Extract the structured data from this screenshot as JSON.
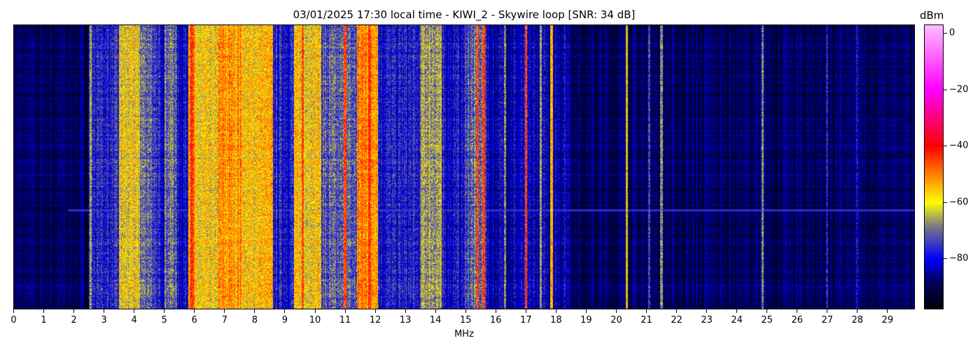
{
  "chart_data": {
    "type": "heatmap",
    "title": "03/01/2025 17:30 local time - KIWI_2 - Skywire loop [SNR: 34 dB]",
    "xlabel": "MHz",
    "ylabel": "",
    "xlim": [
      0,
      29.92
    ],
    "x_ticks": [
      "0",
      "1",
      "2",
      "3",
      "4",
      "5",
      "6",
      "7",
      "8",
      "9",
      "10",
      "11",
      "12",
      "13",
      "14",
      "15",
      "16",
      "17",
      "18",
      "19",
      "20",
      "21",
      "22",
      "23",
      "24",
      "25",
      "26",
      "27",
      "28",
      "29"
    ],
    "colorbar": {
      "label": "dBm",
      "range": [
        -98,
        3
      ],
      "ticks": [
        "0",
        "−20",
        "−40",
        "−60",
        "−80"
      ],
      "tick_values": [
        0,
        -20,
        -40,
        -60,
        -80
      ],
      "colormap": [
        "#000000",
        "#000060",
        "#0000ff",
        "#808080",
        "#ffff00",
        "#ff8000",
        "#ff0000",
        "#ff0080",
        "#ff00ff",
        "#ffc0ff"
      ]
    },
    "band_profile_dbm": [
      {
        "from": 0,
        "to": 2.5,
        "level": -89
      },
      {
        "from": 2.5,
        "to": 3.5,
        "level": -78
      },
      {
        "from": 3.5,
        "to": 4.2,
        "level": -61
      },
      {
        "from": 4.2,
        "to": 4.6,
        "level": -70
      },
      {
        "from": 4.6,
        "to": 5.0,
        "level": -78
      },
      {
        "from": 5.0,
        "to": 5.4,
        "level": -70
      },
      {
        "from": 5.4,
        "to": 5.8,
        "level": -80
      },
      {
        "from": 5.8,
        "to": 6.0,
        "level": -48
      },
      {
        "from": 6.0,
        "to": 6.8,
        "level": -60
      },
      {
        "from": 6.8,
        "to": 7.6,
        "level": -52
      },
      {
        "from": 7.6,
        "to": 8.0,
        "level": -58
      },
      {
        "from": 8.0,
        "to": 8.6,
        "level": -56
      },
      {
        "from": 8.6,
        "to": 9.3,
        "level": -78
      },
      {
        "from": 9.3,
        "to": 10.2,
        "level": -58
      },
      {
        "from": 10.2,
        "to": 11.4,
        "level": -73
      },
      {
        "from": 11.4,
        "to": 12.1,
        "level": -50
      },
      {
        "from": 12.1,
        "to": 13.5,
        "level": -79
      },
      {
        "from": 13.5,
        "to": 14.2,
        "level": -66
      },
      {
        "from": 14.2,
        "to": 15.0,
        "level": -80
      },
      {
        "from": 15.0,
        "to": 15.7,
        "level": -72
      },
      {
        "from": 15.7,
        "to": 18.5,
        "level": -83
      },
      {
        "from": 18.5,
        "to": 30,
        "level": -89
      }
    ],
    "carriers": [
      {
        "mhz": 2.55,
        "level": -66
      },
      {
        "mhz": 5.9,
        "level": -42
      },
      {
        "mhz": 9.6,
        "level": -45
      },
      {
        "mhz": 11.0,
        "level": -45
      },
      {
        "mhz": 11.8,
        "level": -42
      },
      {
        "mhz": 15.4,
        "level": -45
      },
      {
        "mhz": 15.6,
        "level": -44
      },
      {
        "mhz": 16.3,
        "level": -68
      },
      {
        "mhz": 17.0,
        "level": -44
      },
      {
        "mhz": 17.5,
        "level": -66
      },
      {
        "mhz": 17.85,
        "level": -55
      },
      {
        "mhz": 20.35,
        "level": -60
      },
      {
        "mhz": 21.1,
        "level": -74
      },
      {
        "mhz": 21.5,
        "level": -68
      },
      {
        "mhz": 24.85,
        "level": -68
      },
      {
        "mhz": 27.0,
        "level": -78
      },
      {
        "mhz": 28.0,
        "level": -80
      }
    ],
    "grid": false
  }
}
